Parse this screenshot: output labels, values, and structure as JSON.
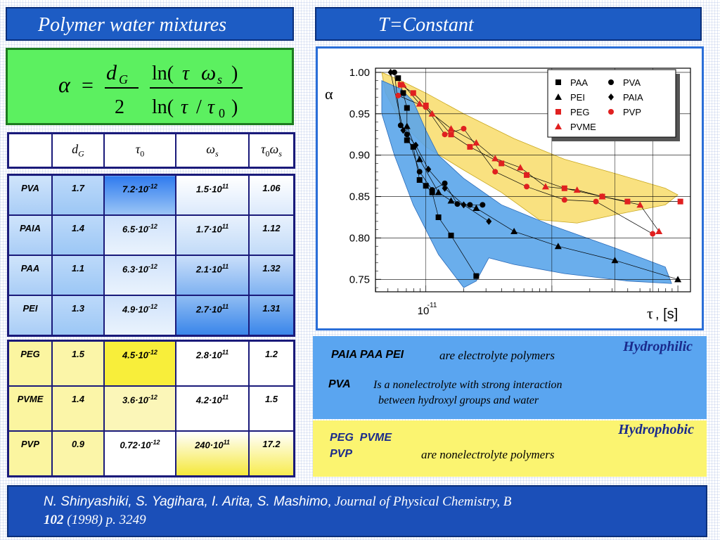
{
  "header": {
    "left_title": "Polymer water mixtures",
    "right_title": "T=Constant"
  },
  "formula": {
    "lhs": "α",
    "eq": "=",
    "num1": "d",
    "num1_sub": "G",
    "den1": "2",
    "num2_pre": "ln(",
    "num2_tau": "τ",
    "num2_omega": "ω",
    "num2_sub": "s",
    "num2_post": ")",
    "den2_pre": "ln(",
    "den2_tau": "τ",
    "den2_slash": "/",
    "den2_tau0": "τ",
    "den2_sub": "0",
    "den2_post": ")"
  },
  "table": {
    "headers": [
      {
        "main": "",
        "sub": ""
      },
      {
        "main": "d",
        "sub": "G"
      },
      {
        "main": "τ",
        "sub": "0"
      },
      {
        "main": "ω",
        "sub": "s"
      },
      {
        "main": "τ",
        "sub": "0",
        "main2": "ω",
        "sub2": "s"
      }
    ],
    "rows_blue": [
      {
        "name": "PVA",
        "dg": "1.7",
        "tau0": "7.2·10",
        "tau0_exp": "-12",
        "ws": "1.5·10",
        "ws_exp": "11",
        "prod": "1.06"
      },
      {
        "name": "PAIA",
        "dg": "1.4",
        "tau0": "6.5·10",
        "tau0_exp": "-12",
        "ws": "1.7·10",
        "ws_exp": "11",
        "prod": "1.12"
      },
      {
        "name": "PAA",
        "dg": "1.1",
        "tau0": "6.3·10",
        "tau0_exp": "-12",
        "ws": "2.1·10",
        "ws_exp": "11",
        "prod": "1.32"
      },
      {
        "name": "PEI",
        "dg": "1.3",
        "tau0": "4.9·10",
        "tau0_exp": "-12",
        "ws": "2.7·10",
        "ws_exp": "11",
        "prod": "1.31"
      }
    ],
    "rows_yellow": [
      {
        "name": "PEG",
        "dg": "1.5",
        "tau0": "4.5·10",
        "tau0_exp": "-12",
        "ws": "2.8·10",
        "ws_exp": "11",
        "prod": "1.2"
      },
      {
        "name": "PVME",
        "dg": "1.4",
        "tau0": "3.6·10",
        "tau0_exp": "-12",
        "ws": "4.2·10",
        "ws_exp": "11",
        "prod": "1.5"
      },
      {
        "name": "PVP",
        "dg": "0.9",
        "tau0": "0.72·10",
        "tau0_exp": "-12",
        "ws": "240·10",
        "ws_exp": "11",
        "prod": "17.2"
      }
    ]
  },
  "chart_data": {
    "type": "scatter",
    "y_axis_label": "α",
    "x_axis_label_symbol": "τ",
    "x_axis_label_unit": ", [s]",
    "x_tick_base": "10",
    "x_tick_exp": "-11",
    "y_ticks": [
      "1.00",
      "0.95",
      "0.90",
      "0.85",
      "0.80",
      "0.75"
    ],
    "y_tick_values": [
      1.0,
      0.95,
      0.9,
      0.85,
      0.8,
      0.75
    ],
    "ylim": [
      0.735,
      1.005
    ],
    "x_log10_range": [
      -11.4,
      -8.9
    ],
    "legend_position": "top-right",
    "legend": [
      {
        "name": "PAA",
        "marker": "square",
        "color": "#000000"
      },
      {
        "name": "PVA",
        "marker": "circle",
        "color": "#000000"
      },
      {
        "name": "PEI",
        "marker": "triangle",
        "color": "#000000"
      },
      {
        "name": "PAIA",
        "marker": "diamond",
        "color": "#000000"
      },
      {
        "name": "PEG",
        "marker": "square",
        "color": "#e02020"
      },
      {
        "name": "PVP",
        "marker": "circle",
        "color": "#e02020"
      },
      {
        "name": "PVME",
        "marker": "triangle",
        "color": "#e02020"
      }
    ],
    "series": [
      {
        "name": "PAA",
        "marker": "square",
        "color": "#000000",
        "points": [
          [
            -11.22,
            0.993
          ],
          [
            -11.18,
            0.975
          ],
          [
            -11.15,
            0.957
          ],
          [
            -11.15,
            0.918
          ],
          [
            -11.1,
            0.91
          ],
          [
            -11.05,
            0.87
          ],
          [
            -11.0,
            0.863
          ],
          [
            -10.95,
            0.855
          ],
          [
            -10.9,
            0.825
          ],
          [
            -10.8,
            0.803
          ],
          [
            -10.6,
            0.754
          ]
        ]
      },
      {
        "name": "PVA",
        "marker": "circle",
        "color": "#000000",
        "points": [
          [
            -11.25,
            1.0
          ],
          [
            -11.2,
            0.936
          ],
          [
            -11.15,
            0.925
          ],
          [
            -11.05,
            0.88
          ],
          [
            -10.95,
            0.858
          ],
          [
            -10.85,
            0.866
          ],
          [
            -10.75,
            0.841
          ],
          [
            -10.65,
            0.84
          ],
          [
            -10.55,
            0.84
          ]
        ]
      },
      {
        "name": "PEI",
        "marker": "triangle",
        "color": "#000000",
        "points": [
          [
            -11.15,
            0.935
          ],
          [
            -11.05,
            0.895
          ],
          [
            -10.9,
            0.855
          ],
          [
            -10.8,
            0.845
          ],
          [
            -10.6,
            0.836
          ],
          [
            -10.3,
            0.808
          ],
          [
            -9.95,
            0.79
          ],
          [
            -9.5,
            0.773
          ],
          [
            -9.0,
            0.75
          ]
        ]
      },
      {
        "name": "PAIA",
        "marker": "diamond",
        "color": "#000000",
        "points": [
          [
            -11.28,
            1.0
          ],
          [
            -11.18,
            0.93
          ],
          [
            -11.08,
            0.912
          ],
          [
            -10.98,
            0.883
          ],
          [
            -10.85,
            0.86
          ],
          [
            -10.7,
            0.84
          ],
          [
            -10.5,
            0.82
          ]
        ]
      },
      {
        "name": "PEG",
        "marker": "square",
        "color": "#e02020",
        "points": [
          [
            -11.2,
            0.985
          ],
          [
            -11.1,
            0.975
          ],
          [
            -11.0,
            0.96
          ],
          [
            -10.8,
            0.925
          ],
          [
            -10.65,
            0.91
          ],
          [
            -10.4,
            0.89
          ],
          [
            -10.2,
            0.876
          ],
          [
            -9.9,
            0.86
          ],
          [
            -9.6,
            0.85
          ],
          [
            -9.4,
            0.844
          ],
          [
            -8.98,
            0.844
          ]
        ]
      },
      {
        "name": "PVP",
        "marker": "circle",
        "color": "#e02020",
        "points": [
          [
            -11.22,
            0.972
          ],
          [
            -11.0,
            0.958
          ],
          [
            -10.85,
            0.925
          ],
          [
            -10.7,
            0.932
          ],
          [
            -10.45,
            0.88
          ],
          [
            -10.2,
            0.862
          ],
          [
            -9.9,
            0.846
          ],
          [
            -9.65,
            0.844
          ],
          [
            -9.2,
            0.805
          ]
        ]
      },
      {
        "name": "PVME",
        "marker": "triangle",
        "color": "#e02020",
        "points": [
          [
            -11.18,
            0.985
          ],
          [
            -11.05,
            0.962
          ],
          [
            -10.95,
            0.95
          ],
          [
            -10.8,
            0.932
          ],
          [
            -10.6,
            0.915
          ],
          [
            -10.45,
            0.896
          ],
          [
            -10.25,
            0.885
          ],
          [
            -10.05,
            0.862
          ],
          [
            -9.8,
            0.858
          ],
          [
            -9.6,
            0.85
          ],
          [
            -9.3,
            0.84
          ],
          [
            -9.15,
            0.808
          ]
        ]
      }
    ]
  },
  "info": {
    "hydrophilic_label": "Hydrophilic",
    "line1_polymers": "PAIA PAA PEI",
    "line1_text": "are electrolyte polymers",
    "line2_polymer": "PVA",
    "line2_text_a": "Is a nonelectrolyte with strong interaction",
    "line2_text_b": "between hydroxyl groups and water",
    "hydrophobic_label": "Hydrophobic",
    "line3_polymers_a": "PEG  PVME",
    "line3_polymers_b": "PVP",
    "line3_text": "are nonelectrolyte polymers",
    "colors": {
      "blue_panel": "#5aa5f0",
      "yellow_panel": "#fbf470"
    }
  },
  "footer": {
    "authors": "N. Shinyashiki, S. Yagihara, I. Arita, S. Mashimo",
    "journal": ", Journal of  Physical Chemistry, B",
    "volume": "102",
    "rest": " (1998) p. 3249"
  }
}
